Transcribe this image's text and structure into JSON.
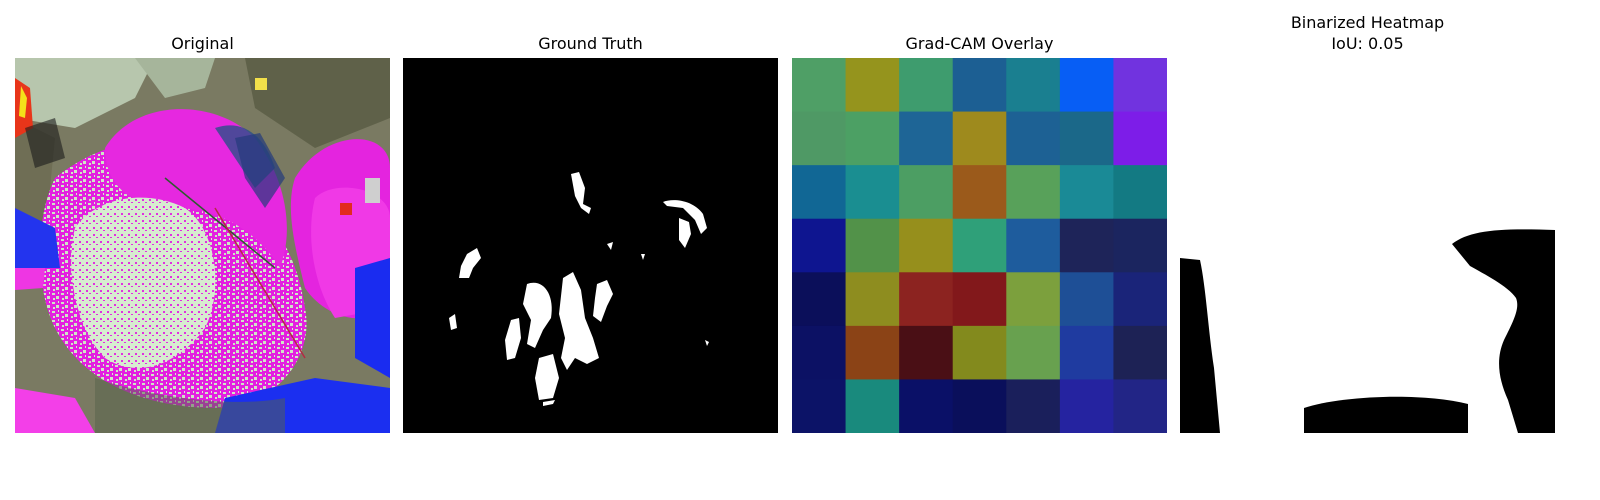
{
  "figure": {
    "panels": [
      {
        "id": "original",
        "title": "Original"
      },
      {
        "id": "ground_truth",
        "title": "Ground Truth"
      },
      {
        "id": "gradcam",
        "title": "Grad-CAM Overlay"
      },
      {
        "id": "binarized",
        "title": "Binarized Heatmap",
        "subtitle": "IoU: 0.05"
      }
    ]
  },
  "gradcam_grid": {
    "rows": 7,
    "cols": 7,
    "colors": [
      [
        "#4f9f66",
        "#95941d",
        "#3e9c6e",
        "#1c5f93",
        "#1a7f90",
        "#075ef5",
        "#7133df"
      ],
      [
        "#4f9965",
        "#4ca064",
        "#1e6596",
        "#9e8a1d",
        "#1d6194",
        "#1b6889",
        "#7d1de8"
      ],
      [
        "#116795",
        "#1a8e91",
        "#4c9e63",
        "#9b5a1b",
        "#58a15a",
        "#1a8a96",
        "#137a83"
      ],
      [
        "#0e1590",
        "#529249",
        "#968f1c",
        "#2fa079",
        "#1e5c9d",
        "#1e2459",
        "#1b255f"
      ],
      [
        "#0b0f5a",
        "#8e8d1f",
        "#8c2320",
        "#82181b",
        "#7ca03d",
        "#1e4f96",
        "#1a2479"
      ],
      [
        "#0c1164",
        "#8b4316",
        "#4a0f15",
        "#838a1d",
        "#68a14f",
        "#1f3ba0",
        "#1d2255"
      ],
      [
        "#0c1367",
        "#198a7d",
        "#0a1067",
        "#0a0f5b",
        "#1a1f5b",
        "#2523a0",
        "#222586"
      ]
    ]
  }
}
